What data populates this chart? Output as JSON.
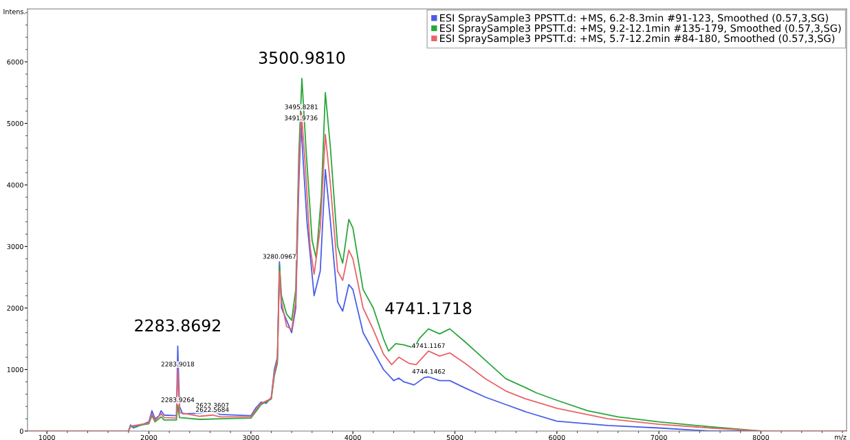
{
  "chart_data": {
    "type": "line",
    "xlabel": "m/z",
    "ylabel": "Intens.",
    "xlim": [
      810,
      8840
    ],
    "xticks": [
      1000,
      2000,
      3000,
      4000,
      5000,
      6000,
      7000,
      8000
    ],
    "ylim": [
      0,
      6860
    ],
    "yticks": [
      0,
      1000,
      2000,
      3000,
      4000,
      5000,
      6000
    ],
    "grid": false,
    "legend": "top right",
    "marker": "none",
    "line_style": "solid",
    "series": [
      {
        "name": "ESI SpraySample3 PPSTT.d: +MS, 6.2-8.3min #91-123, Smoothed (0.57,3,SG)",
        "color": "#4a5de8",
        "x": [
          810,
          1800,
          1820,
          1850,
          2000,
          2030,
          2060,
          2100,
          2120,
          2150,
          2270,
          2283,
          2300,
          2330,
          2500,
          2622,
          2700,
          3000,
          3050,
          3100,
          3150,
          3200,
          3230,
          3260,
          3280,
          3300,
          3350,
          3400,
          3440,
          3470,
          3491,
          3520,
          3550,
          3620,
          3680,
          3730,
          3780,
          3850,
          3900,
          3960,
          4000,
          4100,
          4200,
          4300,
          4400,
          4450,
          4500,
          4600,
          4700,
          4744,
          4850,
          4950,
          5100,
          5300,
          5500,
          5700,
          6000,
          6500,
          7000,
          7500,
          8000,
          8840
        ],
        "values": [
          0,
          0,
          100,
          50,
          150,
          330,
          200,
          250,
          330,
          260,
          250,
          1380,
          400,
          280,
          290,
          330,
          270,
          250,
          380,
          470,
          450,
          550,
          1000,
          1200,
          2750,
          2000,
          1800,
          1600,
          2000,
          4000,
          5000,
          4200,
          3400,
          2200,
          2600,
          4250,
          3400,
          2100,
          1950,
          2380,
          2300,
          1600,
          1300,
          1000,
          820,
          860,
          800,
          750,
          870,
          880,
          820,
          820,
          700,
          550,
          430,
          310,
          160,
          90,
          50,
          0,
          0,
          0
        ]
      },
      {
        "name": "ESI SpraySample3 PPSTT.d: +MS, 9.2-12.1min #135-179, Smoothed (0.57,3,SG)",
        "color": "#2aa63a",
        "x": [
          810,
          1800,
          1820,
          2000,
          2030,
          2060,
          2120,
          2150,
          2270,
          2283,
          2300,
          2500,
          2700,
          3000,
          3050,
          3100,
          3200,
          3230,
          3260,
          3280,
          3300,
          3350,
          3400,
          3440,
          3470,
          3500,
          3540,
          3600,
          3640,
          3690,
          3730,
          3780,
          3850,
          3900,
          3960,
          4000,
          4100,
          4200,
          4300,
          4350,
          4420,
          4500,
          4600,
          4650,
          4741,
          4850,
          4950,
          5100,
          5300,
          5500,
          5700,
          5800,
          6000,
          6300,
          6600,
          7000,
          7500,
          8000,
          8840
        ],
        "values": [
          0,
          0,
          70,
          120,
          250,
          150,
          230,
          180,
          180,
          420,
          220,
          190,
          200,
          210,
          320,
          430,
          520,
          900,
          1100,
          2700,
          2200,
          1900,
          1800,
          2300,
          4500,
          5730,
          4600,
          3100,
          2810,
          3800,
          5500,
          4600,
          3000,
          2730,
          3440,
          3300,
          2300,
          2000,
          1500,
          1300,
          1420,
          1400,
          1350,
          1500,
          1660,
          1580,
          1660,
          1450,
          1150,
          850,
          700,
          620,
          500,
          330,
          230,
          150,
          70,
          0,
          0
        ]
      },
      {
        "name": "ESI SpraySample3 PPSTT.d: +MS, 5.7-12.2min #84-180, Smoothed (0.57,3,SG)",
        "color": "#e8646a",
        "x": [
          810,
          1800,
          1820,
          2000,
          2030,
          2060,
          2120,
          2150,
          2270,
          2283,
          2300,
          2500,
          2622,
          2700,
          3000,
          3050,
          3100,
          3200,
          3230,
          3260,
          3280,
          3300,
          3350,
          3400,
          3440,
          3470,
          3495,
          3530,
          3580,
          3620,
          3680,
          3730,
          3780,
          3850,
          3900,
          3960,
          4000,
          4100,
          4200,
          4300,
          4380,
          4450,
          4550,
          4620,
          4741,
          4850,
          4950,
          5100,
          5300,
          5500,
          5700,
          6000,
          6500,
          7000,
          7500,
          8000,
          8840
        ],
        "values": [
          0,
          0,
          80,
          130,
          280,
          170,
          280,
          220,
          210,
          1000,
          300,
          240,
          260,
          230,
          230,
          350,
          450,
          530,
          950,
          1150,
          2600,
          2100,
          1700,
          1650,
          2100,
          4300,
          5180,
          4400,
          3000,
          2550,
          3300,
          4820,
          4000,
          2600,
          2450,
          2940,
          2800,
          2000,
          1650,
          1250,
          1080,
          1200,
          1100,
          1080,
          1300,
          1220,
          1270,
          1100,
          850,
          650,
          520,
          370,
          200,
          110,
          50,
          0,
          0
        ]
      }
    ],
    "annotations": [
      {
        "text": "2283.8692",
        "x": 2283,
        "y": 1380
      },
      {
        "text": "3500.9810",
        "x": 3500,
        "y": 5730
      },
      {
        "text": "4741.1718",
        "x": 4741,
        "y": 1660
      },
      {
        "text": "3495.8281",
        "x": 3495,
        "y": 5180
      },
      {
        "text": "3491.9736",
        "x": 3491,
        "y": 5000
      },
      {
        "text": "3280.0967",
        "x": 3280,
        "y": 2750
      },
      {
        "text": "2283.9018",
        "x": 2283,
        "y": 1000
      },
      {
        "text": "2283.9264",
        "x": 2283,
        "y": 420
      },
      {
        "text": "2622.3607",
        "x": 2622,
        "y": 330
      },
      {
        "text": "2622.5684",
        "x": 2622,
        "y": 260
      },
      {
        "text": "4741.1167",
        "x": 4741,
        "y": 1300
      },
      {
        "text": "4744.1462",
        "x": 4744,
        "y": 880
      }
    ]
  }
}
